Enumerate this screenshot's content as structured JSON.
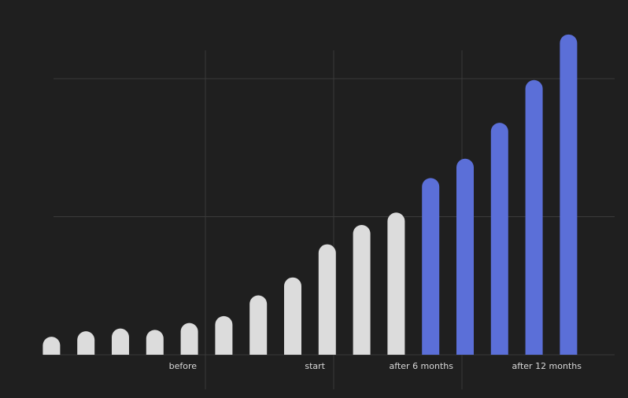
{
  "chart_data": {
    "type": "bar",
    "categories": [
      null,
      null,
      null,
      null,
      null,
      null,
      null,
      null,
      null,
      null,
      null,
      null,
      null,
      null,
      null,
      null
    ],
    "values": [
      0.13,
      0.17,
      0.19,
      0.18,
      0.23,
      0.28,
      0.43,
      0.56,
      0.8,
      0.94,
      1.03,
      1.28,
      1.42,
      1.68,
      1.99,
      2.32
    ],
    "colors": [
      "#dcdcdc",
      "#dcdcdc",
      "#dcdcdc",
      "#dcdcdc",
      "#dcdcdc",
      "#dcdcdc",
      "#dcdcdc",
      "#dcdcdc",
      "#dcdcdc",
      "#dcdcdc",
      "#dcdcdc",
      "#5b6fd8",
      "#5b6fd8",
      "#5b6fd8",
      "#5b6fd8",
      "#5b6fd8"
    ],
    "period_labels": [
      "before",
      "start",
      "after 6 months",
      "after 12 months"
    ],
    "ylim": [
      0,
      2.4
    ],
    "yticks": [
      0,
      1,
      2
    ],
    "grid": true
  }
}
